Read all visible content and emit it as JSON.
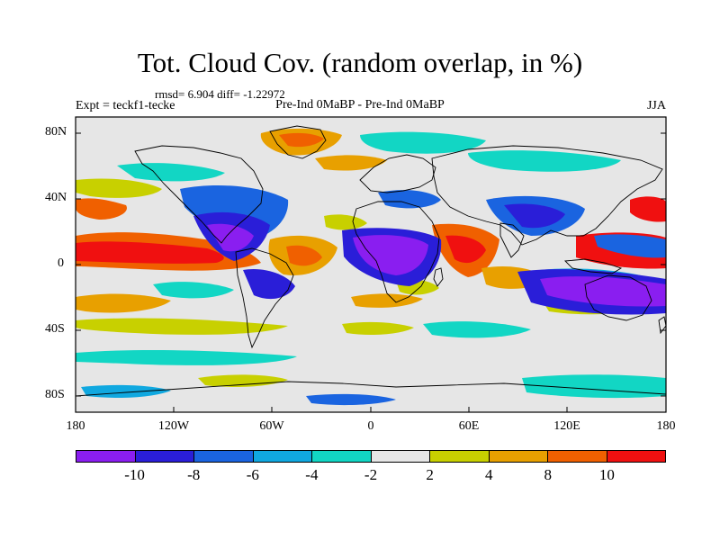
{
  "title": "Tot. Cloud Cov. (random overlap, in %)",
  "stats": "rmsd= 6.904 diff= -1.22972",
  "experiment": "Expt = teckf1-tecke",
  "comparison": "Pre-Ind 0MaBP - Pre-Ind 0MaBP",
  "season": "JJA",
  "lat_ticks": [
    "80N",
    "40N",
    "0",
    "40S",
    "80S"
  ],
  "lon_ticks": [
    "180",
    "120W",
    "60W",
    "0",
    "60E",
    "120E",
    "180"
  ],
  "colorbar": {
    "colors": [
      "#8a1ef0",
      "#2a1ed8",
      "#1a64e0",
      "#10a8e0",
      "#12d6c4",
      "#e6e6e6",
      "#c8d000",
      "#e8a000",
      "#f06000",
      "#f01010"
    ],
    "labels": [
      "-10",
      "-8",
      "-6",
      "-4",
      "-2",
      "2",
      "4",
      "8",
      "10"
    ]
  }
}
